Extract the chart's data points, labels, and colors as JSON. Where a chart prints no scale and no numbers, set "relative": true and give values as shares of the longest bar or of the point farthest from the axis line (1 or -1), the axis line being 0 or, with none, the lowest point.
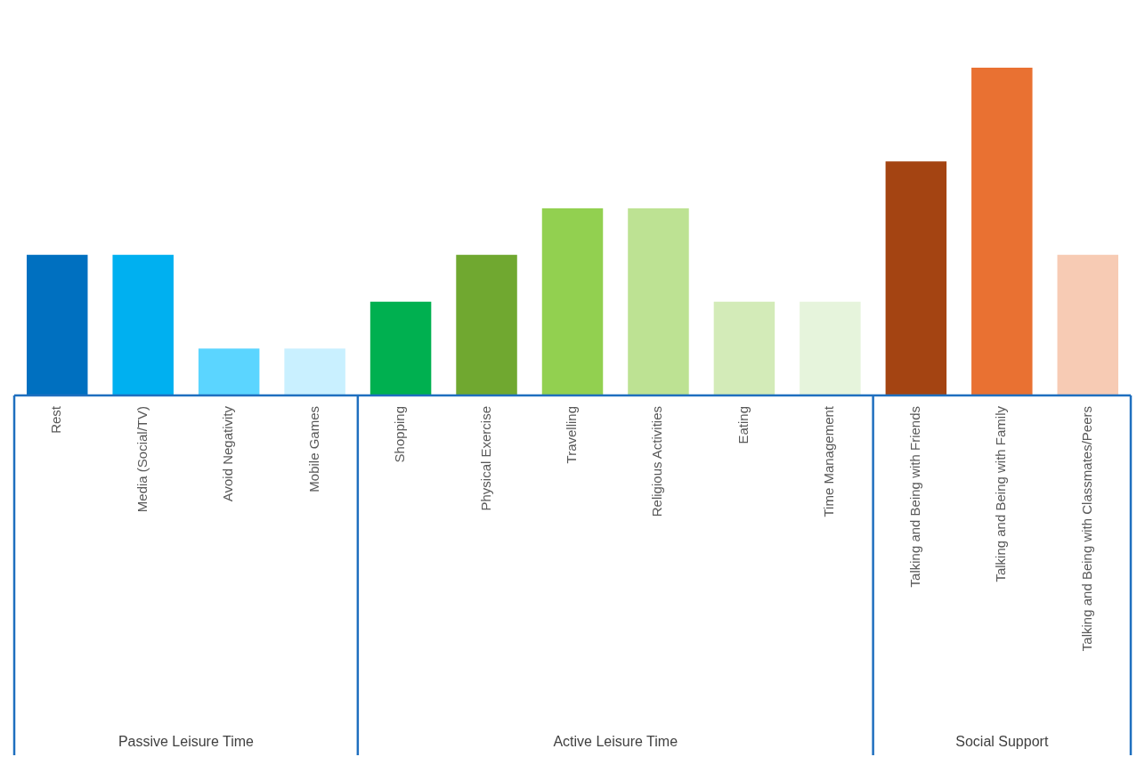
{
  "chart_data": {
    "type": "bar",
    "relative": true,
    "categories": [
      "Rest",
      "Media (Social/TV)",
      "Avoid Negativity",
      "Mobile Games",
      "Shopping",
      "Physical Exercise",
      "Travelling",
      "Religious Activities",
      "Eating",
      "Time Management",
      "Talking and Being with Friends",
      "Talking and Being with Family",
      "Talking and Being with Classmates/Peers"
    ],
    "values": [
      0.429,
      0.429,
      0.143,
      0.143,
      0.286,
      0.429,
      0.571,
      0.571,
      0.286,
      0.286,
      0.714,
      1,
      0.429
    ],
    "colors": [
      "#0070c0",
      "#00b0f0",
      "#5bd5ff",
      "#c9f0ff",
      "#00b050",
      "#70a830",
      "#92d050",
      "#bde293",
      "#d3ebb8",
      "#e6f4dc",
      "#a44412",
      "#e97132",
      "#f7cbb4"
    ],
    "annotations": [
      "Passive Leisure Time",
      "Active Leisure Time",
      "Social Support"
    ]
  }
}
